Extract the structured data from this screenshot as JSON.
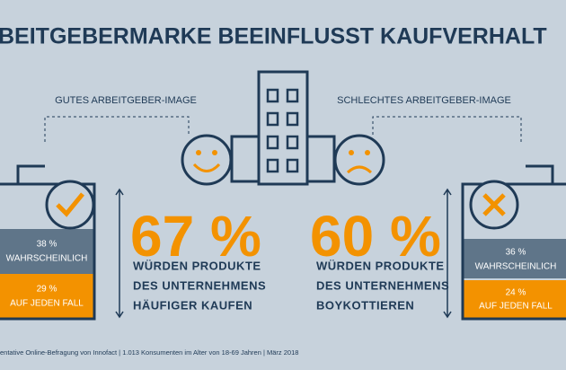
{
  "header": {
    "title": "BEITGEBERMARKE BEEINFLUSST KAUFVERHALT"
  },
  "good": {
    "label": "GUTES ARBEITGEBER-IMAGE",
    "likely": "38 %",
    "likely_label": "WAHRSCHEINLICH",
    "certain": "29 %",
    "certain_label": "AUF JEDEN FALL",
    "total": "67 %",
    "text": [
      "WÜRDEN PRODUKTE",
      "DES UNTERNEHMENS",
      "HÄUFIGER KAUFEN"
    ]
  },
  "bad": {
    "label": "SCHLECHTES ARBEITGEBER-IMAGE",
    "likely": "36 %",
    "likely_label": "WAHRSCHEINLICH",
    "certain": "24 %",
    "certain_label": "AUF JEDEN FALL",
    "total": "60 %",
    "text": [
      "WÜRDEN PRODUKTE",
      "DES UNTERNEHMENS",
      "BOYKOTTIEREN"
    ]
  },
  "footer": "entative Online-Befragung von Innofact | 1.013 Konsumenten im Alter von 18-69 Jahren | März 2018"
}
